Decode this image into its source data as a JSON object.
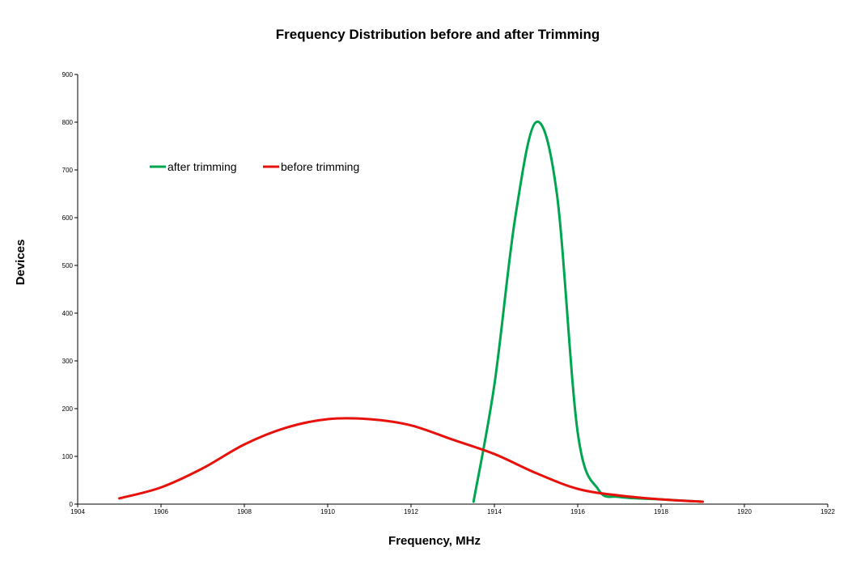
{
  "chart_data": {
    "type": "line",
    "title": "Frequency Distribution before and after Trimming",
    "xlabel": "Frequency, MHz",
    "ylabel": "Devices",
    "xlim": [
      1904,
      1922
    ],
    "ylim": [
      0,
      900
    ],
    "x_ticks": [
      "1904",
      "1906",
      "1908",
      "1910",
      "1912",
      "1914",
      "1916",
      "1918",
      "1920",
      "1922"
    ],
    "y_ticks": [
      "0",
      "100",
      "200",
      "300",
      "400",
      "500",
      "600",
      "700",
      "800",
      "900"
    ],
    "grid": false,
    "legend_position": "top-left",
    "series": [
      {
        "name": "after trimming",
        "color": "#00a550",
        "points": [
          [
            1913.5,
            5
          ],
          [
            1914,
            250
          ],
          [
            1914.5,
            600
          ],
          [
            1915,
            800
          ],
          [
            1915.5,
            650
          ],
          [
            1916,
            150
          ],
          [
            1916.5,
            30
          ],
          [
            1917,
            15
          ],
          [
            1918,
            10
          ],
          [
            1919,
            5
          ]
        ]
      },
      {
        "name": "before trimming",
        "color": "#e8100a",
        "points": [
          [
            1905,
            12
          ],
          [
            1906,
            35
          ],
          [
            1907,
            75
          ],
          [
            1908,
            125
          ],
          [
            1909,
            160
          ],
          [
            1910,
            178
          ],
          [
            1911,
            178
          ],
          [
            1912,
            165
          ],
          [
            1913,
            135
          ],
          [
            1914,
            105
          ],
          [
            1915,
            65
          ],
          [
            1916,
            32
          ],
          [
            1917,
            18
          ],
          [
            1918,
            10
          ],
          [
            1919,
            5
          ]
        ]
      }
    ]
  }
}
